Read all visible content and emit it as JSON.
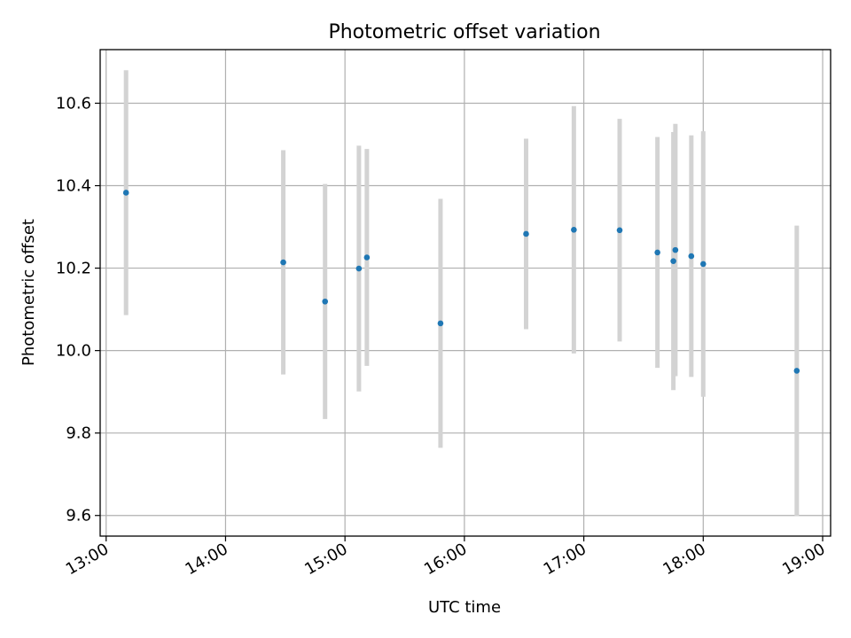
{
  "chart_data": {
    "type": "scatter",
    "title": "Photometric offset variation",
    "xlabel": "UTC time",
    "ylabel": "Photometric offset",
    "x_ticks": [
      "13:00",
      "14:00",
      "15:00",
      "16:00",
      "17:00",
      "18:00",
      "19:00"
    ],
    "y_ticks": [
      "9.6",
      "9.8",
      "10.0",
      "10.2",
      "10.4",
      "10.6"
    ],
    "xlim": [
      "12:57",
      "19:04"
    ],
    "ylim": [
      9.55,
      10.73
    ],
    "grid": true,
    "point_color": "#1f77b4",
    "errorbar_color": "#d3d3d3",
    "points": [
      {
        "x": "13:10",
        "y": 10.383,
        "err": 0.297
      },
      {
        "x": "14:29",
        "y": 10.214,
        "err": 0.272
      },
      {
        "x": "14:50",
        "y": 10.119,
        "err": 0.285
      },
      {
        "x": "15:07",
        "y": 10.199,
        "err": 0.298
      },
      {
        "x": "15:11",
        "y": 10.226,
        "err": 0.263
      },
      {
        "x": "15:48",
        "y": 10.066,
        "err": 0.302
      },
      {
        "x": "16:31",
        "y": 10.283,
        "err": 0.231
      },
      {
        "x": "16:55",
        "y": 10.293,
        "err": 0.3
      },
      {
        "x": "17:18",
        "y": 10.292,
        "err": 0.27
      },
      {
        "x": "17:37",
        "y": 10.238,
        "err": 0.28
      },
      {
        "x": "17:45",
        "y": 10.217,
        "err": 0.313
      },
      {
        "x": "17:46",
        "y": 10.244,
        "err": 0.306
      },
      {
        "x": "17:54",
        "y": 10.229,
        "err": 0.293
      },
      {
        "x": "18:00",
        "y": 10.21,
        "err": 0.322
      },
      {
        "x": "18:47",
        "y": 9.951,
        "err": 0.352
      }
    ]
  }
}
